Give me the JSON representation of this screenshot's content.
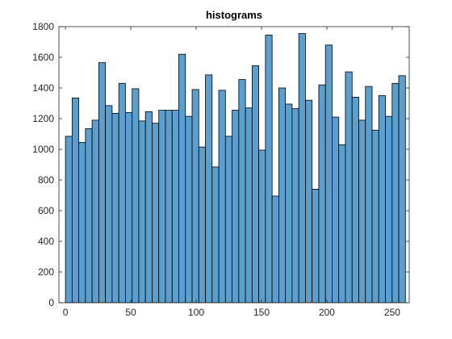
{
  "chart_data": {
    "type": "bar",
    "title": "histograms",
    "xlabel": "",
    "ylabel": "",
    "xlim": [
      -5,
      263
    ],
    "ylim": [
      0,
      1800
    ],
    "xticks": [
      0,
      50,
      100,
      150,
      200,
      250
    ],
    "yticks": [
      0,
      200,
      400,
      600,
      800,
      1000,
      1200,
      1400,
      1600,
      1800
    ],
    "xtick_labels": [
      "0",
      "50",
      "100",
      "150",
      "200",
      "250"
    ],
    "ytick_labels": [
      "0",
      "200",
      "400",
      "600",
      "800",
      "1000",
      "1200",
      "1400",
      "1600",
      "1800"
    ],
    "bin_start": 0,
    "bin_width": 5.1,
    "values": [
      1085,
      1335,
      1045,
      1135,
      1190,
      1565,
      1285,
      1235,
      1430,
      1240,
      1395,
      1185,
      1245,
      1170,
      1255,
      1255,
      1255,
      1620,
      1215,
      1390,
      1015,
      1485,
      885,
      1385,
      1085,
      1255,
      1455,
      1270,
      1545,
      995,
      1745,
      695,
      1400,
      1295,
      1265,
      1755,
      1320,
      740,
      1420,
      1680,
      1210,
      1030,
      1505,
      1340,
      1190,
      1410,
      1125,
      1350,
      1215,
      1430,
      1480
    ],
    "bar_color": "#5b9fcf",
    "edge_color": "#000000",
    "grid": false,
    "box": true
  }
}
